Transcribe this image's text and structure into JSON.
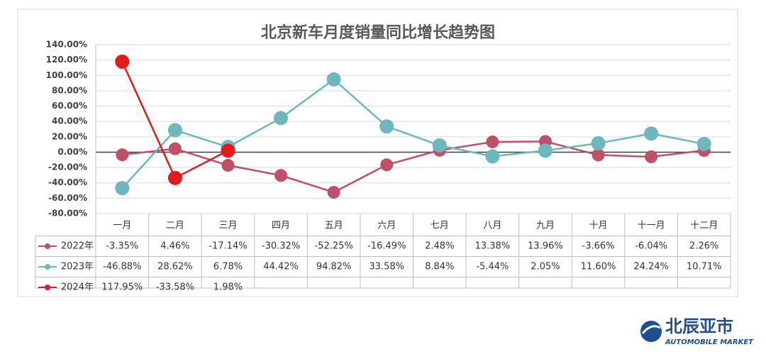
{
  "chart_data": {
    "type": "line",
    "title": "北京新车月度销量同比增长趋势图",
    "categories": [
      "一月",
      "二月",
      "三月",
      "四月",
      "五月",
      "六月",
      "七月",
      "八月",
      "九月",
      "十月",
      "十一月",
      "十二月"
    ],
    "series": [
      {
        "name": "2022年",
        "color": "#bf5068",
        "values": [
          -3.35,
          4.46,
          -17.14,
          -30.32,
          -52.25,
          -16.49,
          2.48,
          13.38,
          13.96,
          -3.66,
          -6.04,
          2.26
        ],
        "value_labels": [
          "-3.35%",
          "4.46%",
          "-17.14%",
          "-30.32%",
          "-52.25%",
          "-16.49%",
          "2.48%",
          "13.38%",
          "13.96%",
          "-3.66%",
          "-6.04%",
          "2.26%"
        ]
      },
      {
        "name": "2023年",
        "color": "#6db8bd",
        "values": [
          -46.88,
          28.62,
          6.78,
          44.42,
          94.82,
          33.58,
          8.84,
          -5.44,
          2.05,
          11.6,
          24.24,
          10.71
        ],
        "value_labels": [
          "-46.88%",
          "28.62%",
          "6.78%",
          "44.42%",
          "94.82%",
          "33.58%",
          "8.84%",
          "-5.44%",
          "2.05%",
          "11.60%",
          "24.24%",
          "10.71%"
        ]
      },
      {
        "name": "2024年",
        "color": "#e3191c",
        "values": [
          117.95,
          -33.58,
          1.98,
          null,
          null,
          null,
          null,
          null,
          null,
          null,
          null,
          null
        ],
        "value_labels": [
          "117.95%",
          "-33.58%",
          "1.98%",
          null,
          null,
          null,
          null,
          null,
          null,
          null,
          null,
          null
        ]
      }
    ],
    "ylim": [
      -80,
      140
    ],
    "yticks": [
      {
        "value": -80,
        "label": "-80.00%"
      },
      {
        "value": -60,
        "label": "-60.00%"
      },
      {
        "value": -40,
        "label": "-40.00%"
      },
      {
        "value": -20,
        "label": "-20.00%"
      },
      {
        "value": 0,
        "label": "0.00%"
      },
      {
        "value": 20,
        "label": "20.00%"
      },
      {
        "value": 40,
        "label": "40.00%"
      },
      {
        "value": 60,
        "label": "60.00%"
      },
      {
        "value": 80,
        "label": "80.00%"
      },
      {
        "value": 100,
        "label": "100.00%"
      },
      {
        "value": 120,
        "label": "120.00%"
      },
      {
        "value": 140,
        "label": "140.00%"
      }
    ],
    "grid": true
  },
  "logo": {
    "name": "北辰亚市",
    "subtitle": "AUTOMOBILE MARKET"
  }
}
